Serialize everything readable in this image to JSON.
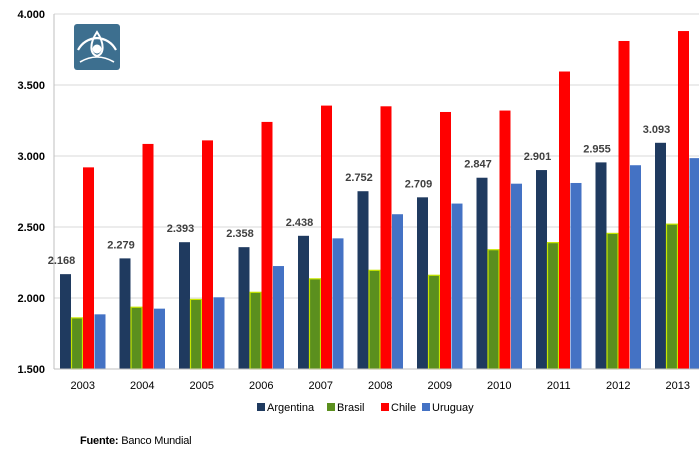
{
  "chart_data": {
    "type": "bar",
    "categories": [
      "2003",
      "2004",
      "2005",
      "2006",
      "2007",
      "2008",
      "2009",
      "2010",
      "2011",
      "2012",
      "2013"
    ],
    "series": [
      {
        "name": "Argentina",
        "color": "#1f3a5f",
        "values": [
          2168,
          2279,
          2393,
          2358,
          2438,
          2752,
          2709,
          2847,
          2901,
          2955,
          3093
        ]
      },
      {
        "name": "Brasil",
        "color": "#5b8f1e",
        "values": [
          1860,
          1935,
          1990,
          2040,
          2135,
          2195,
          2160,
          2340,
          2390,
          2455,
          2520
        ]
      },
      {
        "name": "Chile",
        "color": "#ff0000",
        "values": [
          2920,
          3085,
          3110,
          3240,
          3355,
          3350,
          3310,
          3320,
          3595,
          3810,
          3880
        ]
      },
      {
        "name": "Uruguay",
        "color": "#4472c4",
        "values": [
          1885,
          1925,
          2005,
          2225,
          2420,
          2590,
          2665,
          2805,
          2810,
          2935,
          2985
        ]
      }
    ],
    "data_labels": [
      "2.168",
      "2.279",
      "2.393",
      "2.358",
      "2.438",
      "2.752",
      "2.709",
      "2.847",
      "2.901",
      "2.955",
      "3.093"
    ],
    "yticks": [
      1500,
      2000,
      2500,
      3000,
      3500,
      4000
    ],
    "ytick_labels": [
      "1.500",
      "2.000",
      "2.500",
      "3.000",
      "3.500",
      "4.000"
    ],
    "ylim": [
      1500,
      4000
    ],
    "grid": true,
    "legend_position": "bottom"
  },
  "source": {
    "label": "Fuente:",
    "text": "Banco Mundial"
  },
  "logo": {
    "icon": "institution-logo-icon",
    "color": "#3d6f8f"
  }
}
